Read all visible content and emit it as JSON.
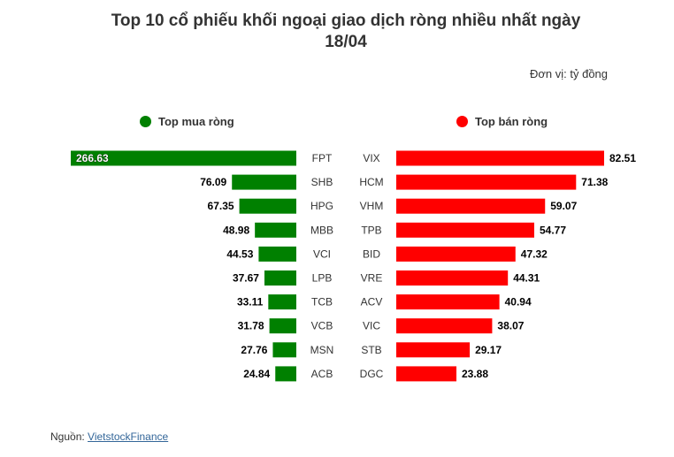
{
  "title_line1": "Top 10 cổ phiếu khối ngoại giao dịch ròng nhiều nhất ngày",
  "title_line2": "18/04",
  "unit": "Đơn vị: tỷ đồng",
  "legend": {
    "buy_label": "Top mua ròng",
    "sell_label": "Top bán ròng"
  },
  "source": {
    "prefix": "Nguồn: ",
    "link_text": "VietstockFinance"
  },
  "colors": {
    "buy": "#008000",
    "sell": "#ff0000",
    "text": "#333333"
  },
  "chart_data": [
    {
      "type": "bar",
      "orientation": "horizontal-leftward",
      "series": [
        {
          "name": "Top mua ròng",
          "categories": [
            "FPT",
            "SHB",
            "HPG",
            "MBB",
            "VCI",
            "LPB",
            "TCB",
            "VCB",
            "MSN",
            "ACB"
          ],
          "values": [
            266.63,
            76.09,
            67.35,
            48.98,
            44.53,
            37.67,
            33.11,
            31.78,
            27.76,
            24.84
          ]
        }
      ],
      "data_labels": true,
      "grid": false
    },
    {
      "type": "bar",
      "orientation": "horizontal",
      "series": [
        {
          "name": "Top bán ròng",
          "categories": [
            "VIX",
            "HCM",
            "VHM",
            "TPB",
            "BID",
            "VRE",
            "ACV",
            "VIC",
            "STB",
            "DGC"
          ],
          "values": [
            82.51,
            71.38,
            59.07,
            54.77,
            47.32,
            44.31,
            40.94,
            38.07,
            29.17,
            23.88
          ]
        }
      ],
      "data_labels": true,
      "grid": false
    }
  ]
}
